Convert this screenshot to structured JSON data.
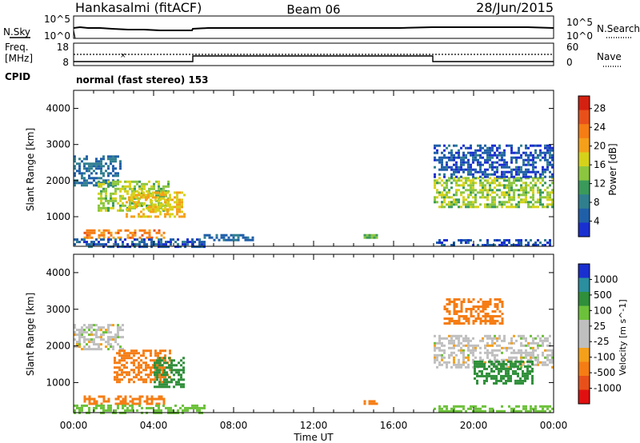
{
  "header": {
    "station": "Hankasalmi (fitACF)",
    "beam": "Beam 06",
    "date": "28/Jun/2015"
  },
  "noise_panel": {
    "left_label": "N.Sky",
    "right_label": "N.Search",
    "left_ticks": [
      "10^5",
      "10^0"
    ],
    "right_ticks": [
      "10^5",
      "10^0"
    ]
  },
  "freq_panel": {
    "left_label_line1": "Freq.",
    "left_label_line2": "[MHz]",
    "right_label": "Nave",
    "left_ticks": [
      "18",
      "8"
    ],
    "right_ticks": [
      "60",
      "0"
    ]
  },
  "cpid": {
    "label": "CPID",
    "text": "normal (fast stereo) 153"
  },
  "chart_data": [
    {
      "type": "heatmap",
      "title": "",
      "xlabel": "Time UT",
      "ylabel": "Slant Range [km]",
      "x_ticks": [
        "00:00",
        "04:00",
        "08:00",
        "12:00",
        "16:00",
        "20:00",
        "00:00"
      ],
      "y_ticks": [
        "1000",
        "2000",
        "3000",
        "4000"
      ],
      "ylim": [
        180,
        4500
      ],
      "xlim_hours": [
        0,
        24
      ],
      "colorbar_label": "Power [dB]",
      "colorbar_ticks": [
        "4",
        "8",
        "12",
        "16",
        "20",
        "24",
        "28"
      ],
      "colorbar_colors": [
        "#1a2fd0",
        "#1f5fa8",
        "#2f7f8f",
        "#3a9a5a",
        "#8cc63f",
        "#d6d21a",
        "#f5a01a",
        "#f57d14",
        "#e8501a",
        "#d42010"
      ],
      "regions": [
        {
          "t0": 0.0,
          "t1": 2.3,
          "r0": 1900,
          "r1": 2700,
          "value": 8
        },
        {
          "t0": 1.2,
          "t1": 4.8,
          "r0": 1200,
          "r1": 2000,
          "value": 16
        },
        {
          "t0": 2.6,
          "t1": 5.5,
          "r0": 1000,
          "r1": 1700,
          "value": 20
        },
        {
          "t0": 0.5,
          "t1": 4.5,
          "r0": 400,
          "r1": 650,
          "value": 24
        },
        {
          "t0": 0.0,
          "t1": 6.5,
          "r0": 200,
          "r1": 400,
          "value": 6
        },
        {
          "t0": 6.5,
          "t1": 9.0,
          "r0": 380,
          "r1": 520,
          "value": 8
        },
        {
          "t0": 14.5,
          "t1": 15.2,
          "r0": 420,
          "r1": 520,
          "value": 14
        },
        {
          "t0": 18.0,
          "t1": 24.0,
          "r0": 1300,
          "r1": 2100,
          "value": 16
        },
        {
          "t0": 18.0,
          "t1": 24.0,
          "r0": 2100,
          "r1": 3000,
          "value": 6
        },
        {
          "t0": 18.0,
          "t1": 24.0,
          "r0": 200,
          "r1": 380,
          "value": 6
        }
      ]
    },
    {
      "type": "heatmap",
      "title": "",
      "xlabel": "Time UT",
      "ylabel": "Slant Range [km]",
      "x_ticks": [
        "00:00",
        "04:00",
        "08:00",
        "12:00",
        "16:00",
        "20:00",
        "00:00"
      ],
      "y_ticks": [
        "1000",
        "2000",
        "3000",
        "4000"
      ],
      "ylim": [
        180,
        4500
      ],
      "xlim_hours": [
        0,
        24
      ],
      "colorbar_label": "Velocity [m s^-1]",
      "colorbar_ticks": [
        "1000",
        "500",
        "100",
        "25",
        "-25",
        "-100",
        "-500",
        "-1000"
      ],
      "colorbar_colors": [
        "#1a2fd0",
        "#2a8f9f",
        "#2f8f3a",
        "#6cc13a",
        "#bfbfbf",
        "#bfbfbf",
        "#f5a01a",
        "#f57d14",
        "#e8501a",
        "#e11010"
      ],
      "regions": [
        {
          "t0": 0.0,
          "t1": 2.5,
          "r0": 1900,
          "r1": 2600,
          "value": 0
        },
        {
          "t0": 2.0,
          "t1": 4.8,
          "r0": 1000,
          "r1": 1900,
          "value": -150
        },
        {
          "t0": 4.0,
          "t1": 5.5,
          "r0": 900,
          "r1": 1700,
          "value": 150
        },
        {
          "t0": 0.5,
          "t1": 4.5,
          "r0": 400,
          "r1": 650,
          "value": -200
        },
        {
          "t0": 0.0,
          "t1": 6.5,
          "r0": 200,
          "r1": 400,
          "value": 60
        },
        {
          "t0": 14.5,
          "t1": 15.2,
          "r0": 420,
          "r1": 520,
          "value": -300
        },
        {
          "t0": 18.0,
          "t1": 24.0,
          "r0": 1400,
          "r1": 2300,
          "value": 0
        },
        {
          "t0": 20.0,
          "t1": 23.0,
          "r0": 1000,
          "r1": 1600,
          "value": 150
        },
        {
          "t0": 18.5,
          "t1": 21.5,
          "r0": 2600,
          "r1": 3300,
          "value": -150
        },
        {
          "t0": 18.0,
          "t1": 24.0,
          "r0": 200,
          "r1": 380,
          "value": 60
        }
      ]
    }
  ]
}
